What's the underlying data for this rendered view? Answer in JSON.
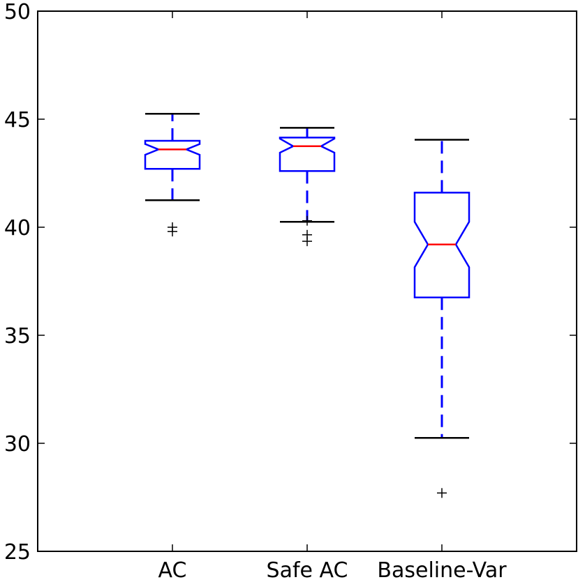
{
  "chart_data": {
    "type": "boxplot",
    "notched": true,
    "title": "",
    "xlabel": "",
    "ylabel": "",
    "ylim": [
      25,
      50
    ],
    "yticks": [
      25,
      30,
      35,
      40,
      45,
      50
    ],
    "ytick_labels": [
      "25",
      "30",
      "35",
      "40",
      "45",
      "50"
    ],
    "categories": [
      "AC",
      "Safe AC",
      "Baseline-Var"
    ],
    "boxes": [
      {
        "label": "AC",
        "whisker_low": 41.25,
        "q1": 42.7,
        "median": 43.6,
        "q3": 44.0,
        "whisker_high": 45.25,
        "notch_low": 43.35,
        "notch_high": 43.85,
        "outliers": [
          39.8,
          40.0
        ]
      },
      {
        "label": "Safe AC",
        "whisker_low": 40.25,
        "q1": 42.6,
        "median": 43.75,
        "q3": 44.15,
        "whisker_high": 44.6,
        "notch_low": 43.45,
        "notch_high": 44.1,
        "outliers": [
          39.35,
          39.65,
          40.3
        ]
      },
      {
        "label": "Baseline-Var",
        "whisker_low": 30.25,
        "q1": 36.75,
        "median": 39.2,
        "q3": 41.6,
        "whisker_high": 44.05,
        "notch_low": 38.15,
        "notch_high": 40.25,
        "outliers": [
          27.7
        ]
      }
    ],
    "grid": false,
    "colors": {
      "box": "#0000ff",
      "median": "#ff0000",
      "whisker_cap": "#000000",
      "outlier": "#000000",
      "axes": "#000000"
    }
  }
}
